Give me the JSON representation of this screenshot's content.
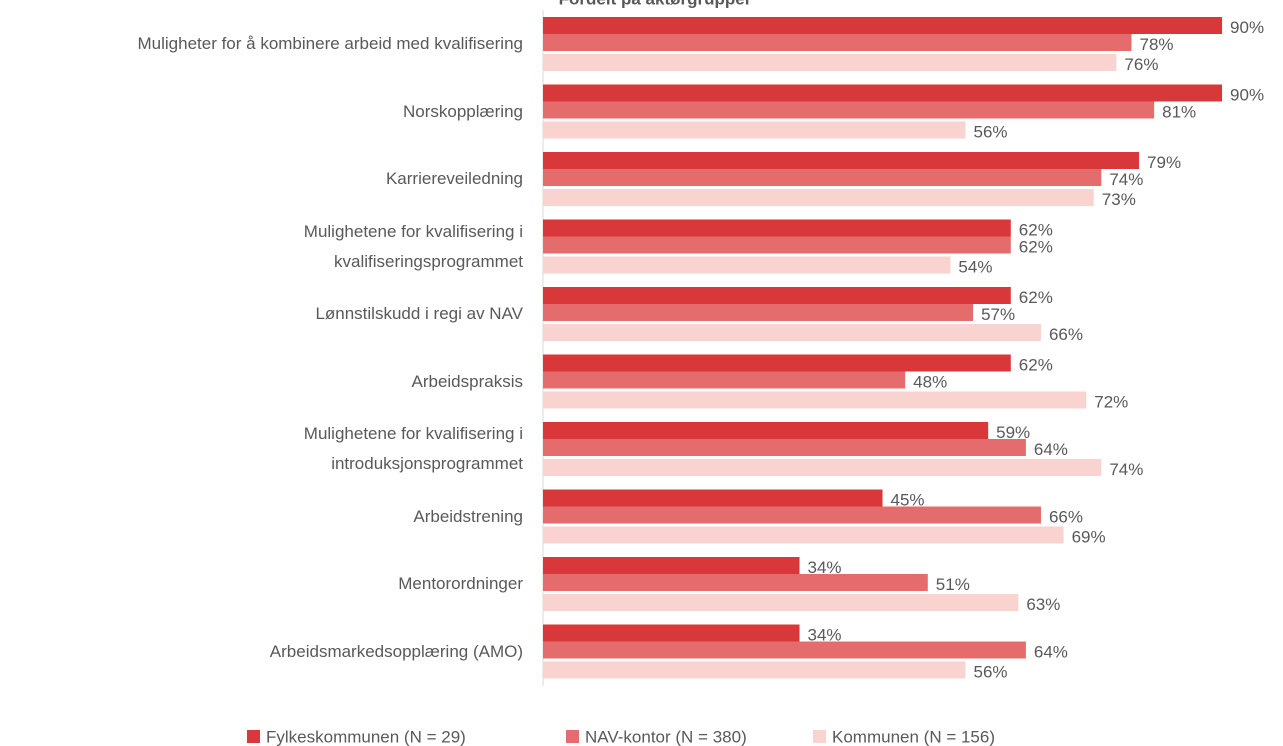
{
  "chart_data": {
    "type": "bar",
    "orientation": "horizontal",
    "title": "Fordelt på aktørgrupper",
    "categories": [
      "Muligheter for å kombinere arbeid med kvalifisering",
      "Norskopplæring",
      "Karriereveiledning",
      "Mulighetene for kvalifisering i\nkvalifiseringsprogrammet",
      "Lønnstilskudd i regi av NAV",
      "Arbeidspraksis",
      "Mulighetene for kvalifisering i\nintroduksjonsprogrammet",
      "Arbeidstrening",
      "Mentorordninger",
      "Arbeidsmarkedsopplæring (AMO)"
    ],
    "series": [
      {
        "name": "Fylkeskommunen (N = 29)",
        "color": "#d9383a",
        "values": [
          90,
          90,
          79,
          62,
          62,
          62,
          59,
          45,
          34,
          34
        ],
        "value_labels": [
          "90%",
          "90%",
          "79%",
          "62%",
          "62%",
          "62%",
          "59%",
          "45%",
          "34%",
          "34%"
        ]
      },
      {
        "name": "NAV-kontor (N = 380)",
        "color": "#e46c6c",
        "values": [
          78,
          81,
          74,
          62,
          57,
          48,
          64,
          66,
          51,
          64
        ],
        "value_labels": [
          "78%",
          "81%",
          "74%",
          "62%",
          "57%",
          "48%",
          "64%",
          "66%",
          "51%",
          "64%"
        ]
      },
      {
        "name": "Kommunen (N = 156)",
        "color": "#f9d3cf",
        "values": [
          76,
          56,
          73,
          54,
          66,
          72,
          74,
          69,
          63,
          56
        ],
        "value_labels": [
          "76%",
          "56%",
          "73%",
          "54%",
          "66%",
          "72%",
          "74%",
          "69%",
          "63%",
          "56%"
        ]
      }
    ],
    "xlim": [
      0,
      100
    ],
    "legend": "bottom"
  }
}
